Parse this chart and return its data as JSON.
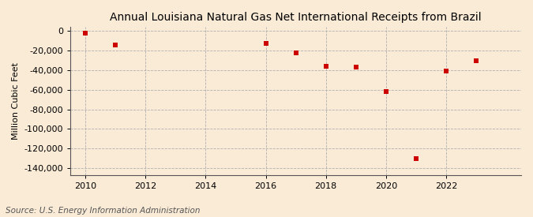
{
  "title": "Annual Louisiana Natural Gas Net International Receipts from Brazil",
  "ylabel": "Million Cubic Feet",
  "source": "Source: U.S. Energy Information Administration",
  "background_color": "#faebd7",
  "plot_background_color": "#faebd7",
  "marker_color": "#cc0000",
  "marker_size": 5,
  "marker_style": "s",
  "xlim": [
    2009.5,
    2024.5
  ],
  "ylim": [
    -147000,
    4000
  ],
  "xticks": [
    2010,
    2012,
    2014,
    2016,
    2018,
    2020,
    2022
  ],
  "yticks": [
    0,
    -20000,
    -40000,
    -60000,
    -80000,
    -100000,
    -120000,
    -140000
  ],
  "years": [
    2010,
    2011,
    2016,
    2017,
    2018,
    2019,
    2020,
    2021,
    2022,
    2023
  ],
  "values": [
    -2000,
    -14000,
    -13000,
    -22000,
    -36000,
    -37000,
    -62000,
    -130000,
    -41000,
    -30000
  ],
  "title_fontsize": 10,
  "axis_fontsize": 8,
  "tick_fontsize": 8,
  "source_fontsize": 7.5
}
